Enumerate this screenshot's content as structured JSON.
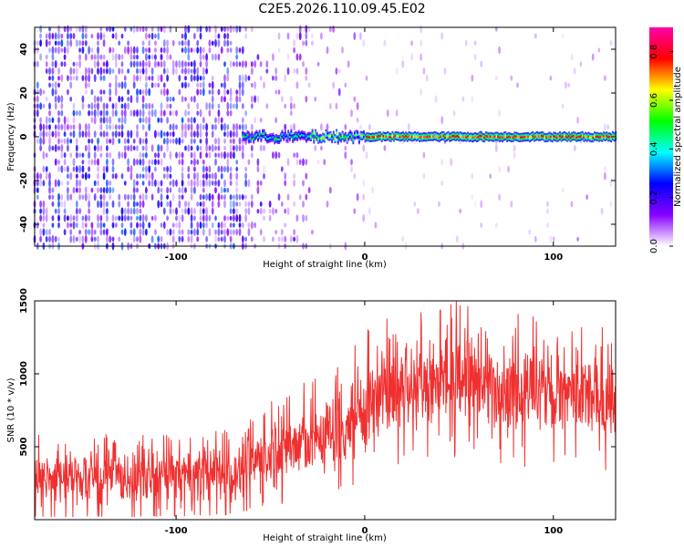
{
  "title": "C2E5.2026.110.09.45.E02",
  "chart_data": [
    {
      "type": "heatmap",
      "name": "spectrogram",
      "xlabel": "Height of straight line (km)",
      "ylabel": "Frequency (Hz)",
      "xlim": [
        -175,
        133
      ],
      "ylim": [
        -50,
        50
      ],
      "xticks": [
        -100,
        0,
        100
      ],
      "yticks": [
        -40,
        -20,
        0,
        20,
        40
      ],
      "colorbar": {
        "label": "Normalized spectral amplitude",
        "range": [
          0.0,
          0.9
        ],
        "ticks": [
          "0.0",
          "0.2",
          "0.4",
          "0.6",
          "0.8"
        ],
        "colormap": [
          "#ffffff",
          "#8800ff",
          "#0000ff",
          "#00ffff",
          "#00ff00",
          "#ffff00",
          "#ff0000",
          "#ff00aa"
        ]
      },
      "regions": [
        {
          "x_from": -175,
          "x_to": -62,
          "pattern": "broadband noise across all frequencies",
          "amplitude": 0.12
        },
        {
          "x_from": -62,
          "x_to": -30,
          "pattern": "sparse noise with emerging narrow band near 0 Hz",
          "amplitude": 0.4
        },
        {
          "x_from": -30,
          "x_to": 0,
          "pattern": "narrow band near 0 Hz",
          "amplitude": 0.55
        },
        {
          "x_from": 0,
          "x_to": 133,
          "pattern": "strong narrow band at 0 Hz",
          "amplitude": 0.8
        }
      ]
    },
    {
      "type": "line",
      "name": "snr",
      "xlabel": "Height of straight line (km)",
      "ylabel": "SNR (10 * v/v)",
      "xlim": [
        -175,
        133
      ],
      "ylim": [
        0,
        1500
      ],
      "xticks": [
        -100,
        0,
        100
      ],
      "yticks": [
        500,
        1000,
        1500
      ],
      "color": "#f03030",
      "envelope": [
        {
          "x": -175,
          "low": 20,
          "high": 560
        },
        {
          "x": -120,
          "low": 20,
          "high": 560
        },
        {
          "x": -70,
          "low": 40,
          "high": 590
        },
        {
          "x": -60,
          "low": 80,
          "high": 700
        },
        {
          "x": -50,
          "low": 100,
          "high": 820
        },
        {
          "x": -40,
          "low": 150,
          "high": 880
        },
        {
          "x": -30,
          "low": 150,
          "high": 900
        },
        {
          "x": -15,
          "low": 200,
          "high": 1050
        },
        {
          "x": 0,
          "low": 300,
          "high": 1250
        },
        {
          "x": 20,
          "low": 480,
          "high": 1400
        },
        {
          "x": 50,
          "low": 500,
          "high": 1450
        },
        {
          "x": 80,
          "low": 450,
          "high": 1350
        },
        {
          "x": 110,
          "low": 400,
          "high": 1300
        },
        {
          "x": 133,
          "low": 380,
          "high": 1250
        }
      ]
    }
  ]
}
